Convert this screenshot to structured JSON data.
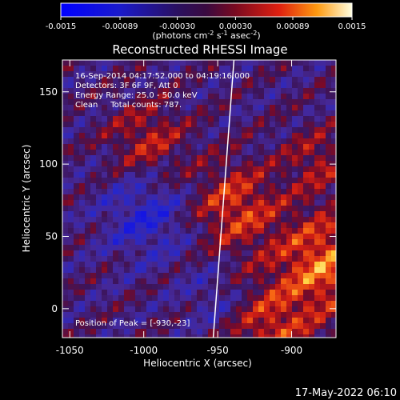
{
  "chart_data": {
    "type": "heatmap",
    "title": "Reconstructed RHESSI Image",
    "xlabel": "Heliocentric X (arcsec)",
    "ylabel": "Heliocentric Y (arcsec)",
    "xlim": [
      -1055,
      -870
    ],
    "ylim": [
      -20,
      172
    ],
    "x_ticks": [
      "-1050",
      "-1000",
      "-950",
      "-900"
    ],
    "x_tick_values": [
      -1050,
      -1000,
      -950,
      -900
    ],
    "y_ticks": [
      "0",
      "50",
      "100",
      "150"
    ],
    "y_tick_values": [
      0,
      50,
      100,
      150
    ],
    "colorbar": {
      "ticks": [
        "-0.0015",
        "-0.00089",
        "-0.00030",
        "0.00030",
        "0.00089",
        "0.0015"
      ],
      "tick_values": [
        -0.0015,
        -0.00089,
        -0.0003,
        0.0003,
        0.00089,
        0.0015
      ],
      "range": [
        -0.0015,
        0.0015
      ],
      "units_label": "(photons cm",
      "units_exp1": "-2",
      "units_mid": " s",
      "units_exp2": "-1",
      "units_end": " asec",
      "units_exp3": "-2",
      "units_close": ")"
    },
    "annotations": {
      "time_range": "16-Sep-2014 04:17:52.000 to 04:19:16.000",
      "detectors": "Detectors: 3F 6F 9F, Att 0",
      "energy": "Energy Range: 25.0 - 50.0 keV",
      "clean": "Clean     Total counts: 787.",
      "peak": "Position of Peak = [-930,-23]"
    },
    "limb_line": {
      "x_bottom": -953,
      "x_top": -939
    },
    "peak_position": [
      -930,
      -23
    ],
    "timestamp": "17-May-2022 06:10",
    "colors": {
      "background": "#000000",
      "text": "#ffffff"
    }
  }
}
